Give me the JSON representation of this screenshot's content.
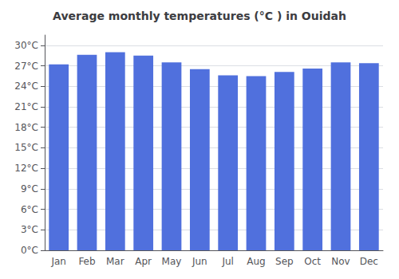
{
  "chart_data": {
    "type": "bar",
    "title": "Average monthly temperatures (°C ) in Ouidah",
    "categories": [
      "Jan",
      "Feb",
      "Mar",
      "Apr",
      "May",
      "Jun",
      "Jul",
      "Aug",
      "Sep",
      "Oct",
      "Nov",
      "Dec"
    ],
    "values": [
      27.2,
      28.6,
      29.0,
      28.5,
      27.5,
      26.5,
      25.6,
      25.5,
      26.1,
      26.6,
      27.5,
      27.4
    ],
    "ylim": [
      0,
      31.5
    ],
    "yticks": [
      {
        "value": 0,
        "label": "0°C"
      },
      {
        "value": 3,
        "label": "3°C"
      },
      {
        "value": 6,
        "label": "6°C"
      },
      {
        "value": 9,
        "label": "9°C"
      },
      {
        "value": 12,
        "label": "12°C"
      },
      {
        "value": 15,
        "label": "15°C"
      },
      {
        "value": 18,
        "label": "18°C"
      },
      {
        "value": 21,
        "label": "21°C"
      },
      {
        "value": 24,
        "label": "24°C"
      },
      {
        "value": 27,
        "label": "27°C"
      },
      {
        "value": 30,
        "label": "30°C"
      }
    ],
    "grid": true
  }
}
